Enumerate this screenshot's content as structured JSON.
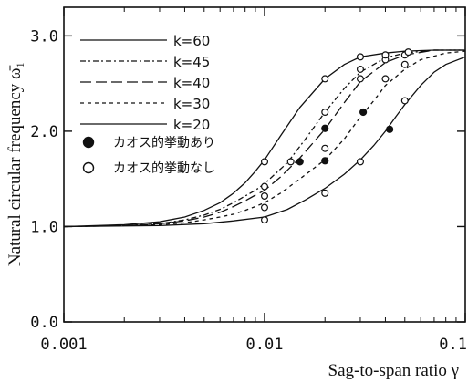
{
  "chart_data": {
    "type": "line",
    "x_scale": "log",
    "xlim": [
      0.001,
      0.1
    ],
    "ylim": [
      0.0,
      3.3
    ],
    "xlabel": "Sag-to-span ratio γ",
    "ylabel": "Natural circular frequency ω̄₁",
    "x_ticks": [
      {
        "value": 0.001,
        "label": "0.001"
      },
      {
        "value": 0.01,
        "label": "0.01"
      },
      {
        "value": 0.1,
        "label": "0.1"
      }
    ],
    "y_ticks": [
      {
        "value": 0.0,
        "label": "0.0"
      },
      {
        "value": 1.0,
        "label": "1.0"
      },
      {
        "value": 2.0,
        "label": "2.0"
      },
      {
        "value": 3.0,
        "label": "3.0"
      }
    ],
    "series": [
      {
        "name": "k=60",
        "dash": "solid",
        "points": [
          [
            0.001,
            1.0
          ],
          [
            0.002,
            1.02
          ],
          [
            0.003,
            1.05
          ],
          [
            0.004,
            1.1
          ],
          [
            0.005,
            1.17
          ],
          [
            0.006,
            1.25
          ],
          [
            0.007,
            1.35
          ],
          [
            0.008,
            1.46
          ],
          [
            0.009,
            1.58
          ],
          [
            0.01,
            1.7
          ],
          [
            0.012,
            1.95
          ],
          [
            0.015,
            2.25
          ],
          [
            0.02,
            2.55
          ],
          [
            0.025,
            2.7
          ],
          [
            0.03,
            2.78
          ],
          [
            0.04,
            2.82
          ],
          [
            0.05,
            2.84
          ],
          [
            0.07,
            2.85
          ],
          [
            0.1,
            2.85
          ]
        ]
      },
      {
        "name": "k=45",
        "dash": "6,3,2,3",
        "points": [
          [
            0.001,
            1.0
          ],
          [
            0.002,
            1.01
          ],
          [
            0.003,
            1.03
          ],
          [
            0.004,
            1.07
          ],
          [
            0.005,
            1.12
          ],
          [
            0.006,
            1.18
          ],
          [
            0.007,
            1.25
          ],
          [
            0.008,
            1.32
          ],
          [
            0.009,
            1.38
          ],
          [
            0.01,
            1.45
          ],
          [
            0.013,
            1.67
          ],
          [
            0.016,
            1.92
          ],
          [
            0.02,
            2.2
          ],
          [
            0.025,
            2.45
          ],
          [
            0.03,
            2.62
          ],
          [
            0.04,
            2.77
          ],
          [
            0.05,
            2.82
          ],
          [
            0.07,
            2.85
          ],
          [
            0.1,
            2.85
          ]
        ]
      },
      {
        "name": "k=40",
        "dash": "12,5",
        "points": [
          [
            0.001,
            1.0
          ],
          [
            0.002,
            1.01
          ],
          [
            0.003,
            1.03
          ],
          [
            0.004,
            1.06
          ],
          [
            0.005,
            1.1
          ],
          [
            0.006,
            1.15
          ],
          [
            0.007,
            1.21
          ],
          [
            0.008,
            1.27
          ],
          [
            0.009,
            1.33
          ],
          [
            0.01,
            1.38
          ],
          [
            0.012,
            1.52
          ],
          [
            0.015,
            1.72
          ],
          [
            0.02,
            2.02
          ],
          [
            0.025,
            2.3
          ],
          [
            0.03,
            2.52
          ],
          [
            0.04,
            2.72
          ],
          [
            0.05,
            2.8
          ],
          [
            0.07,
            2.85
          ],
          [
            0.1,
            2.85
          ]
        ]
      },
      {
        "name": "k=30",
        "dash": "4,4",
        "points": [
          [
            0.001,
            1.0
          ],
          [
            0.002,
            1.01
          ],
          [
            0.003,
            1.02
          ],
          [
            0.004,
            1.04
          ],
          [
            0.005,
            1.07
          ],
          [
            0.006,
            1.1
          ],
          [
            0.007,
            1.13
          ],
          [
            0.008,
            1.17
          ],
          [
            0.009,
            1.21
          ],
          [
            0.01,
            1.25
          ],
          [
            0.012,
            1.35
          ],
          [
            0.015,
            1.5
          ],
          [
            0.02,
            1.7
          ],
          [
            0.025,
            1.92
          ],
          [
            0.03,
            2.15
          ],
          [
            0.035,
            2.32
          ],
          [
            0.04,
            2.48
          ],
          [
            0.05,
            2.65
          ],
          [
            0.06,
            2.75
          ],
          [
            0.08,
            2.82
          ],
          [
            0.1,
            2.84
          ]
        ]
      },
      {
        "name": "k=20",
        "dash": "solid",
        "points": [
          [
            0.001,
            1.0
          ],
          [
            0.003,
            1.01
          ],
          [
            0.005,
            1.03
          ],
          [
            0.007,
            1.06
          ],
          [
            0.01,
            1.1
          ],
          [
            0.013,
            1.18
          ],
          [
            0.016,
            1.28
          ],
          [
            0.02,
            1.4
          ],
          [
            0.025,
            1.55
          ],
          [
            0.03,
            1.7
          ],
          [
            0.035,
            1.85
          ],
          [
            0.04,
            2.0
          ],
          [
            0.045,
            2.15
          ],
          [
            0.05,
            2.28
          ],
          [
            0.06,
            2.48
          ],
          [
            0.07,
            2.62
          ],
          [
            0.08,
            2.7
          ],
          [
            0.1,
            2.78
          ]
        ]
      }
    ],
    "markers_filled": [
      [
        0.015,
        1.68
      ],
      [
        0.02,
        1.69
      ],
      [
        0.02,
        2.03
      ],
      [
        0.031,
        2.2
      ],
      [
        0.042,
        2.02
      ]
    ],
    "markers_open": [
      [
        0.01,
        1.07
      ],
      [
        0.01,
        1.2
      ],
      [
        0.01,
        1.32
      ],
      [
        0.01,
        1.42
      ],
      [
        0.01,
        1.68
      ],
      [
        0.0135,
        1.68
      ],
      [
        0.02,
        1.35
      ],
      [
        0.02,
        1.82
      ],
      [
        0.02,
        2.2
      ],
      [
        0.02,
        2.55
      ],
      [
        0.03,
        1.68
      ],
      [
        0.03,
        2.55
      ],
      [
        0.03,
        2.65
      ],
      [
        0.03,
        2.78
      ],
      [
        0.04,
        2.55
      ],
      [
        0.04,
        2.75
      ],
      [
        0.04,
        2.8
      ],
      [
        0.05,
        2.32
      ],
      [
        0.05,
        2.7
      ],
      [
        0.05,
        2.8
      ],
      [
        0.052,
        2.83
      ]
    ],
    "legend": [
      {
        "label": "k=60",
        "dash": "solid"
      },
      {
        "label": "k=45",
        "dash": "6,3,2,3"
      },
      {
        "label": "k=40",
        "dash": "12,5"
      },
      {
        "label": "k=30",
        "dash": "4,4"
      },
      {
        "label": "k=20",
        "dash": "solid"
      }
    ],
    "marker_legend": [
      {
        "marker": "filled-circle",
        "label": "カオス的挙動あり"
      },
      {
        "marker": "open-circle",
        "label": "カオス的挙動なし"
      }
    ],
    "grid": false,
    "legend_position": "top-left",
    "line_color": "#111111"
  }
}
